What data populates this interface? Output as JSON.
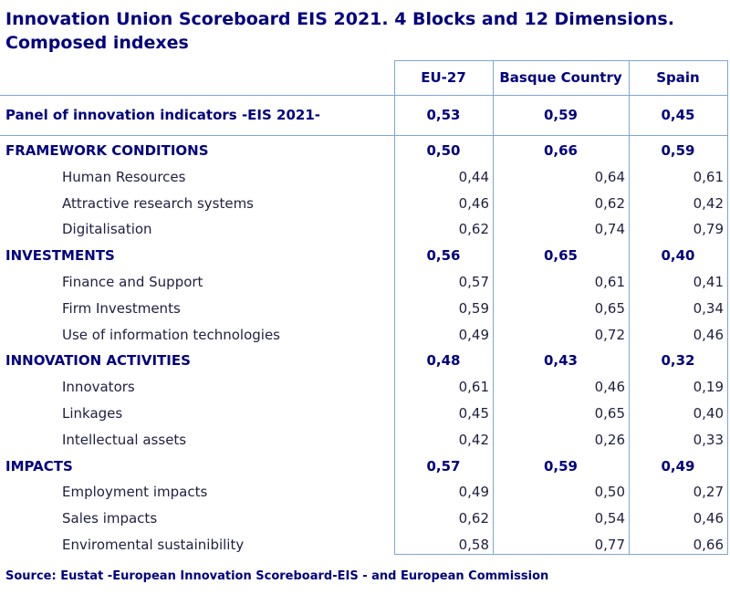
{
  "title": "Innovation Union Scoreboard EIS 2021. 4 Blocks and 12 Dimensions. Composed indexes",
  "source": "Source: Eustat -European Innovation Scoreboard-EIS - and European Commission",
  "chart_data": {
    "type": "table",
    "columns": [
      "EU-27",
      "Basque Country",
      "Spain"
    ],
    "rows": [
      {
        "label": "Panel of innovation indicators -EIS 2021-",
        "level": "total",
        "values": [
          "0,53",
          "0,59",
          "0,45"
        ]
      },
      {
        "label": "FRAMEWORK CONDITIONS",
        "level": "block",
        "values": [
          "0,50",
          "0,66",
          "0,59"
        ]
      },
      {
        "label": "Human Resources",
        "level": "dimension",
        "values": [
          "0,44",
          "0,64",
          "0,61"
        ]
      },
      {
        "label": "Attractive research systems",
        "level": "dimension",
        "values": [
          "0,46",
          "0,62",
          "0,42"
        ]
      },
      {
        "label": "Digitalisation",
        "level": "dimension",
        "values": [
          "0,62",
          "0,74",
          "0,79"
        ]
      },
      {
        "label": "INVESTMENTS",
        "level": "block",
        "values": [
          "0,56",
          "0,65",
          "0,40"
        ]
      },
      {
        "label": "Finance and Support",
        "level": "dimension",
        "values": [
          "0,57",
          "0,61",
          "0,41"
        ]
      },
      {
        "label": "Firm Investments",
        "level": "dimension",
        "values": [
          "0,59",
          "0,65",
          "0,34"
        ]
      },
      {
        "label": "Use of information technologies",
        "level": "dimension",
        "values": [
          "0,49",
          "0,72",
          "0,46"
        ]
      },
      {
        "label": "INNOVATION ACTIVITIES",
        "level": "block",
        "values": [
          "0,48",
          "0,43",
          "0,32"
        ]
      },
      {
        "label": "Innovators",
        "level": "dimension",
        "values": [
          "0,61",
          "0,46",
          "0,19"
        ]
      },
      {
        "label": "Linkages",
        "level": "dimension",
        "values": [
          "0,45",
          "0,65",
          "0,40"
        ]
      },
      {
        "label": "Intellectual assets",
        "level": "dimension",
        "values": [
          "0,42",
          "0,26",
          "0,33"
        ]
      },
      {
        "label": "IMPACTS",
        "level": "block",
        "values": [
          "0,57",
          "0,59",
          "0,49"
        ]
      },
      {
        "label": "Employment impacts",
        "level": "dimension",
        "values": [
          "0,49",
          "0,50",
          "0,27"
        ]
      },
      {
        "label": "Sales impacts",
        "level": "dimension",
        "values": [
          "0,62",
          "0,54",
          "0,46"
        ]
      },
      {
        "label": "Enviromental sustainibility",
        "level": "dimension",
        "values": [
          "0,58",
          "0,77",
          "0,66"
        ]
      }
    ]
  }
}
